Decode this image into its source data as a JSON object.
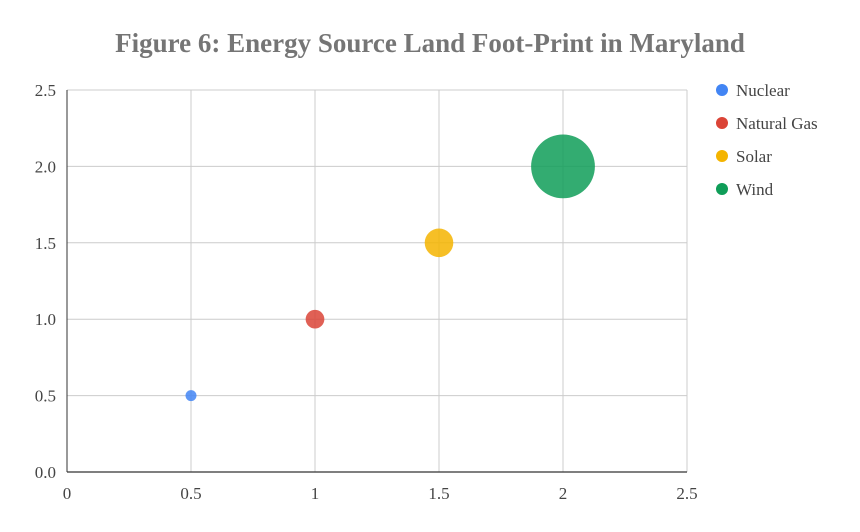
{
  "chart_data": {
    "type": "scatter",
    "title": "Figure 6: Energy Source Land Foot-Print in Maryland",
    "xlabel": "",
    "ylabel": "",
    "xlim": [
      0,
      2.5
    ],
    "ylim": [
      0,
      2.5
    ],
    "x_ticks": [
      {
        "value": 0,
        "label": "0"
      },
      {
        "value": 0.5,
        "label": "0.5"
      },
      {
        "value": 1,
        "label": "1"
      },
      {
        "value": 1.5,
        "label": "1.5"
      },
      {
        "value": 2,
        "label": "2"
      },
      {
        "value": 2.5,
        "label": "2.5"
      }
    ],
    "y_ticks": [
      {
        "value": 0,
        "label": "0.0"
      },
      {
        "value": 0.5,
        "label": "0.5"
      },
      {
        "value": 1,
        "label": "1.0"
      },
      {
        "value": 1.5,
        "label": "1.5"
      },
      {
        "value": 2,
        "label": "2.0"
      },
      {
        "value": 2.5,
        "label": "2.5"
      }
    ],
    "grid": true,
    "legend_position": "right",
    "series": [
      {
        "name": "Nuclear",
        "color": "#4285f4",
        "x": 0.5,
        "y": 0.5,
        "relative_size": 1
      },
      {
        "name": "Natural Gas",
        "color": "#db4437",
        "x": 1,
        "y": 1,
        "relative_size": 1.7
      },
      {
        "name": "Solar",
        "color": "#f4b400",
        "x": 1.5,
        "y": 1.5,
        "relative_size": 2.6
      },
      {
        "name": "Wind",
        "color": "#0f9d58",
        "x": 2,
        "y": 2,
        "relative_size": 5.8
      }
    ]
  }
}
